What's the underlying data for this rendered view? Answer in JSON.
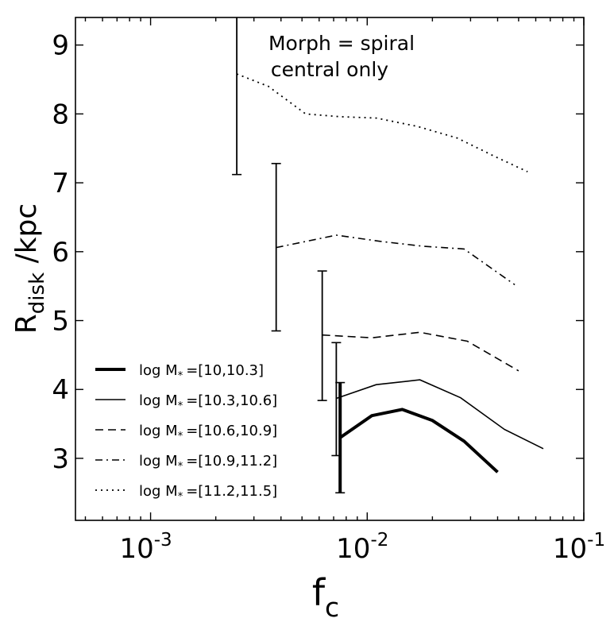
{
  "chart_data": {
    "type": "line",
    "xscale": "log",
    "xlim": [
      0.00045,
      0.1
    ],
    "ylim": [
      2.1,
      9.4
    ],
    "x_ticks": [
      {
        "value": 0.001,
        "base": "10",
        "exp": "-3"
      },
      {
        "value": 0.01,
        "base": "10",
        "exp": "-2"
      },
      {
        "value": 0.1,
        "base": "10",
        "exp": "-1"
      }
    ],
    "y_ticks": [
      3,
      4,
      5,
      6,
      7,
      8,
      9
    ],
    "y_tick_labels": [
      "3",
      "4",
      "5",
      "6",
      "7",
      "8",
      "9"
    ],
    "xlabel": {
      "main": "f",
      "sub": "c"
    },
    "ylabel": {
      "main": "R",
      "sub": "disk",
      "rest": " /kpc"
    },
    "annotation": [
      "Morph = spiral",
      "central only"
    ],
    "legend": {
      "placement": "lower-left",
      "prefix": "log M",
      "sub": "*",
      "ranges": [
        "=[10,10.3]",
        "=[10.3,10.6]",
        "=[10.6,10.9]",
        "=[10.9,11.2]",
        "=[11.2,11.5]"
      ]
    },
    "series": [
      {
        "name": "log M* =[10,10.3]",
        "style": "solid-thick",
        "x": [
          0.0075,
          0.0105,
          0.0145,
          0.02,
          0.028,
          0.04
        ],
        "y": [
          3.3,
          3.62,
          3.71,
          3.55,
          3.25,
          2.8
        ],
        "errorbar": {
          "x": 0.0075,
          "low": 2.5,
          "high": 4.1
        }
      },
      {
        "name": "log M* =[10.3,10.6]",
        "style": "solid",
        "x": [
          0.0072,
          0.011,
          0.0175,
          0.027,
          0.043,
          0.065
        ],
        "y": [
          3.87,
          4.07,
          4.14,
          3.88,
          3.42,
          3.14
        ],
        "errorbar": {
          "x": 0.0072,
          "low": 3.04,
          "high": 4.68
        }
      },
      {
        "name": "log M* =[10.6,10.9]",
        "style": "dashed",
        "x": [
          0.0062,
          0.0105,
          0.0175,
          0.029,
          0.05
        ],
        "y": [
          4.79,
          4.75,
          4.83,
          4.7,
          4.27
        ],
        "errorbar": {
          "x": 0.0062,
          "low": 3.84,
          "high": 5.72
        }
      },
      {
        "name": "log M* =[10.9,11.2]",
        "style": "dash-dot",
        "x": [
          0.0038,
          0.0072,
          0.0115,
          0.018,
          0.028,
          0.048
        ],
        "y": [
          6.06,
          6.24,
          6.15,
          6.08,
          6.04,
          5.52
        ],
        "errorbar": {
          "x": 0.0038,
          "low": 4.85,
          "high": 7.28
        }
      },
      {
        "name": "log M* =[11.2,11.5]",
        "style": "dotted",
        "x": [
          0.0025,
          0.0035,
          0.0052,
          0.0075,
          0.011,
          0.017,
          0.026,
          0.039,
          0.055
        ],
        "y": [
          8.58,
          8.4,
          8.0,
          7.96,
          7.94,
          7.82,
          7.65,
          7.38,
          7.16
        ],
        "errorbar": {
          "x": 0.0025,
          "low": 7.12,
          "high": 9.4
        }
      }
    ]
  }
}
